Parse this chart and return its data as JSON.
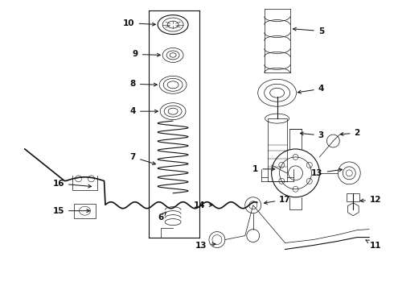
{
  "background_color": "#ffffff",
  "fig_width": 4.9,
  "fig_height": 3.6,
  "dpi": 100,
  "line_color": "#111111",
  "label_fontsize": 7.5
}
